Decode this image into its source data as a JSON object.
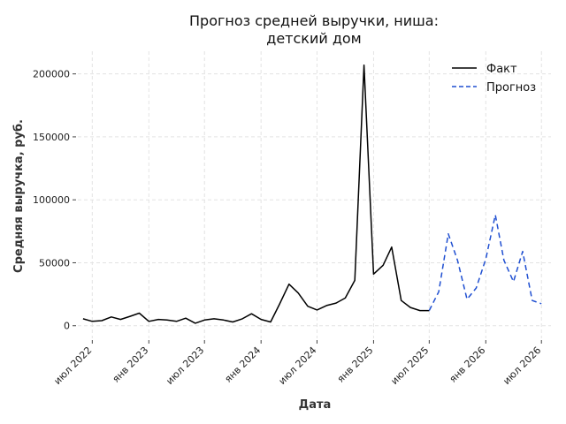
{
  "chart_data": {
    "type": "line",
    "title_line1": "Прогноз средней выручки, ниша:",
    "title_line2": "детский дом",
    "xlabel": "Дата",
    "ylabel": "Средняя выручка, руб.",
    "ylim": [
      -10000,
      218000
    ],
    "xlim": [
      "2022-05-15",
      "2026-08-01"
    ],
    "grid": true,
    "legend_position": "top-right",
    "x_ticks": [
      {
        "date": "2022-07-01",
        "label": "июл 2022"
      },
      {
        "date": "2023-01-01",
        "label": "янв 2023"
      },
      {
        "date": "2023-07-01",
        "label": "июл 2023"
      },
      {
        "date": "2024-01-01",
        "label": "янв 2024"
      },
      {
        "date": "2024-07-01",
        "label": "июл 2024"
      },
      {
        "date": "2025-01-01",
        "label": "янв 2025"
      },
      {
        "date": "2025-07-01",
        "label": "июл 2025"
      },
      {
        "date": "2026-01-01",
        "label": "янв 2026"
      },
      {
        "date": "2026-07-01",
        "label": "июл 2026"
      }
    ],
    "y_ticks": [
      {
        "value": 0,
        "label": "0"
      },
      {
        "value": 50000,
        "label": "50000"
      },
      {
        "value": 100000,
        "label": "100000"
      },
      {
        "value": 150000,
        "label": "150000"
      },
      {
        "value": 200000,
        "label": "200000"
      }
    ],
    "series": [
      {
        "name": "Факт",
        "color": "#000000",
        "style": "solid",
        "x": [
          "2022-06-01",
          "2022-07-01",
          "2022-08-01",
          "2022-09-01",
          "2022-10-01",
          "2022-11-01",
          "2022-12-01",
          "2023-01-01",
          "2023-02-01",
          "2023-03-01",
          "2023-04-01",
          "2023-05-01",
          "2023-06-01",
          "2023-07-01",
          "2023-08-01",
          "2023-09-01",
          "2023-10-01",
          "2023-11-01",
          "2023-12-01",
          "2024-01-01",
          "2024-02-01",
          "2024-03-01",
          "2024-04-01",
          "2024-05-01",
          "2024-06-01",
          "2024-07-01",
          "2024-08-01",
          "2024-09-01",
          "2024-10-01",
          "2024-11-01",
          "2024-12-01",
          "2025-01-01",
          "2025-02-01",
          "2025-03-01",
          "2025-04-01",
          "2025-05-01",
          "2025-06-01",
          "2025-07-01"
        ],
        "values": [
          5500,
          3500,
          4000,
          7000,
          5000,
          7500,
          10000,
          3500,
          5000,
          4500,
          3500,
          6000,
          2000,
          4500,
          5500,
          4500,
          3000,
          5500,
          9500,
          5000,
          3000,
          17000,
          33000,
          26000,
          15500,
          12500,
          16000,
          18000,
          22000,
          36000,
          207000,
          41000,
          48000,
          62500,
          20000,
          14500,
          12000,
          12000
        ]
      },
      {
        "name": "Прогноз",
        "color": "#1f4fd1",
        "style": "dashed",
        "x": [
          "2025-07-01",
          "2025-08-01",
          "2025-09-01",
          "2025-10-01",
          "2025-11-01",
          "2025-12-01",
          "2026-01-01",
          "2026-02-01",
          "2026-03-01",
          "2026-04-01",
          "2026-05-01",
          "2026-06-01",
          "2026-07-01"
        ],
        "values": [
          12000,
          27000,
          73000,
          52000,
          21000,
          30000,
          53000,
          88000,
          52000,
          35000,
          59000,
          20000,
          17500
        ]
      }
    ]
  }
}
